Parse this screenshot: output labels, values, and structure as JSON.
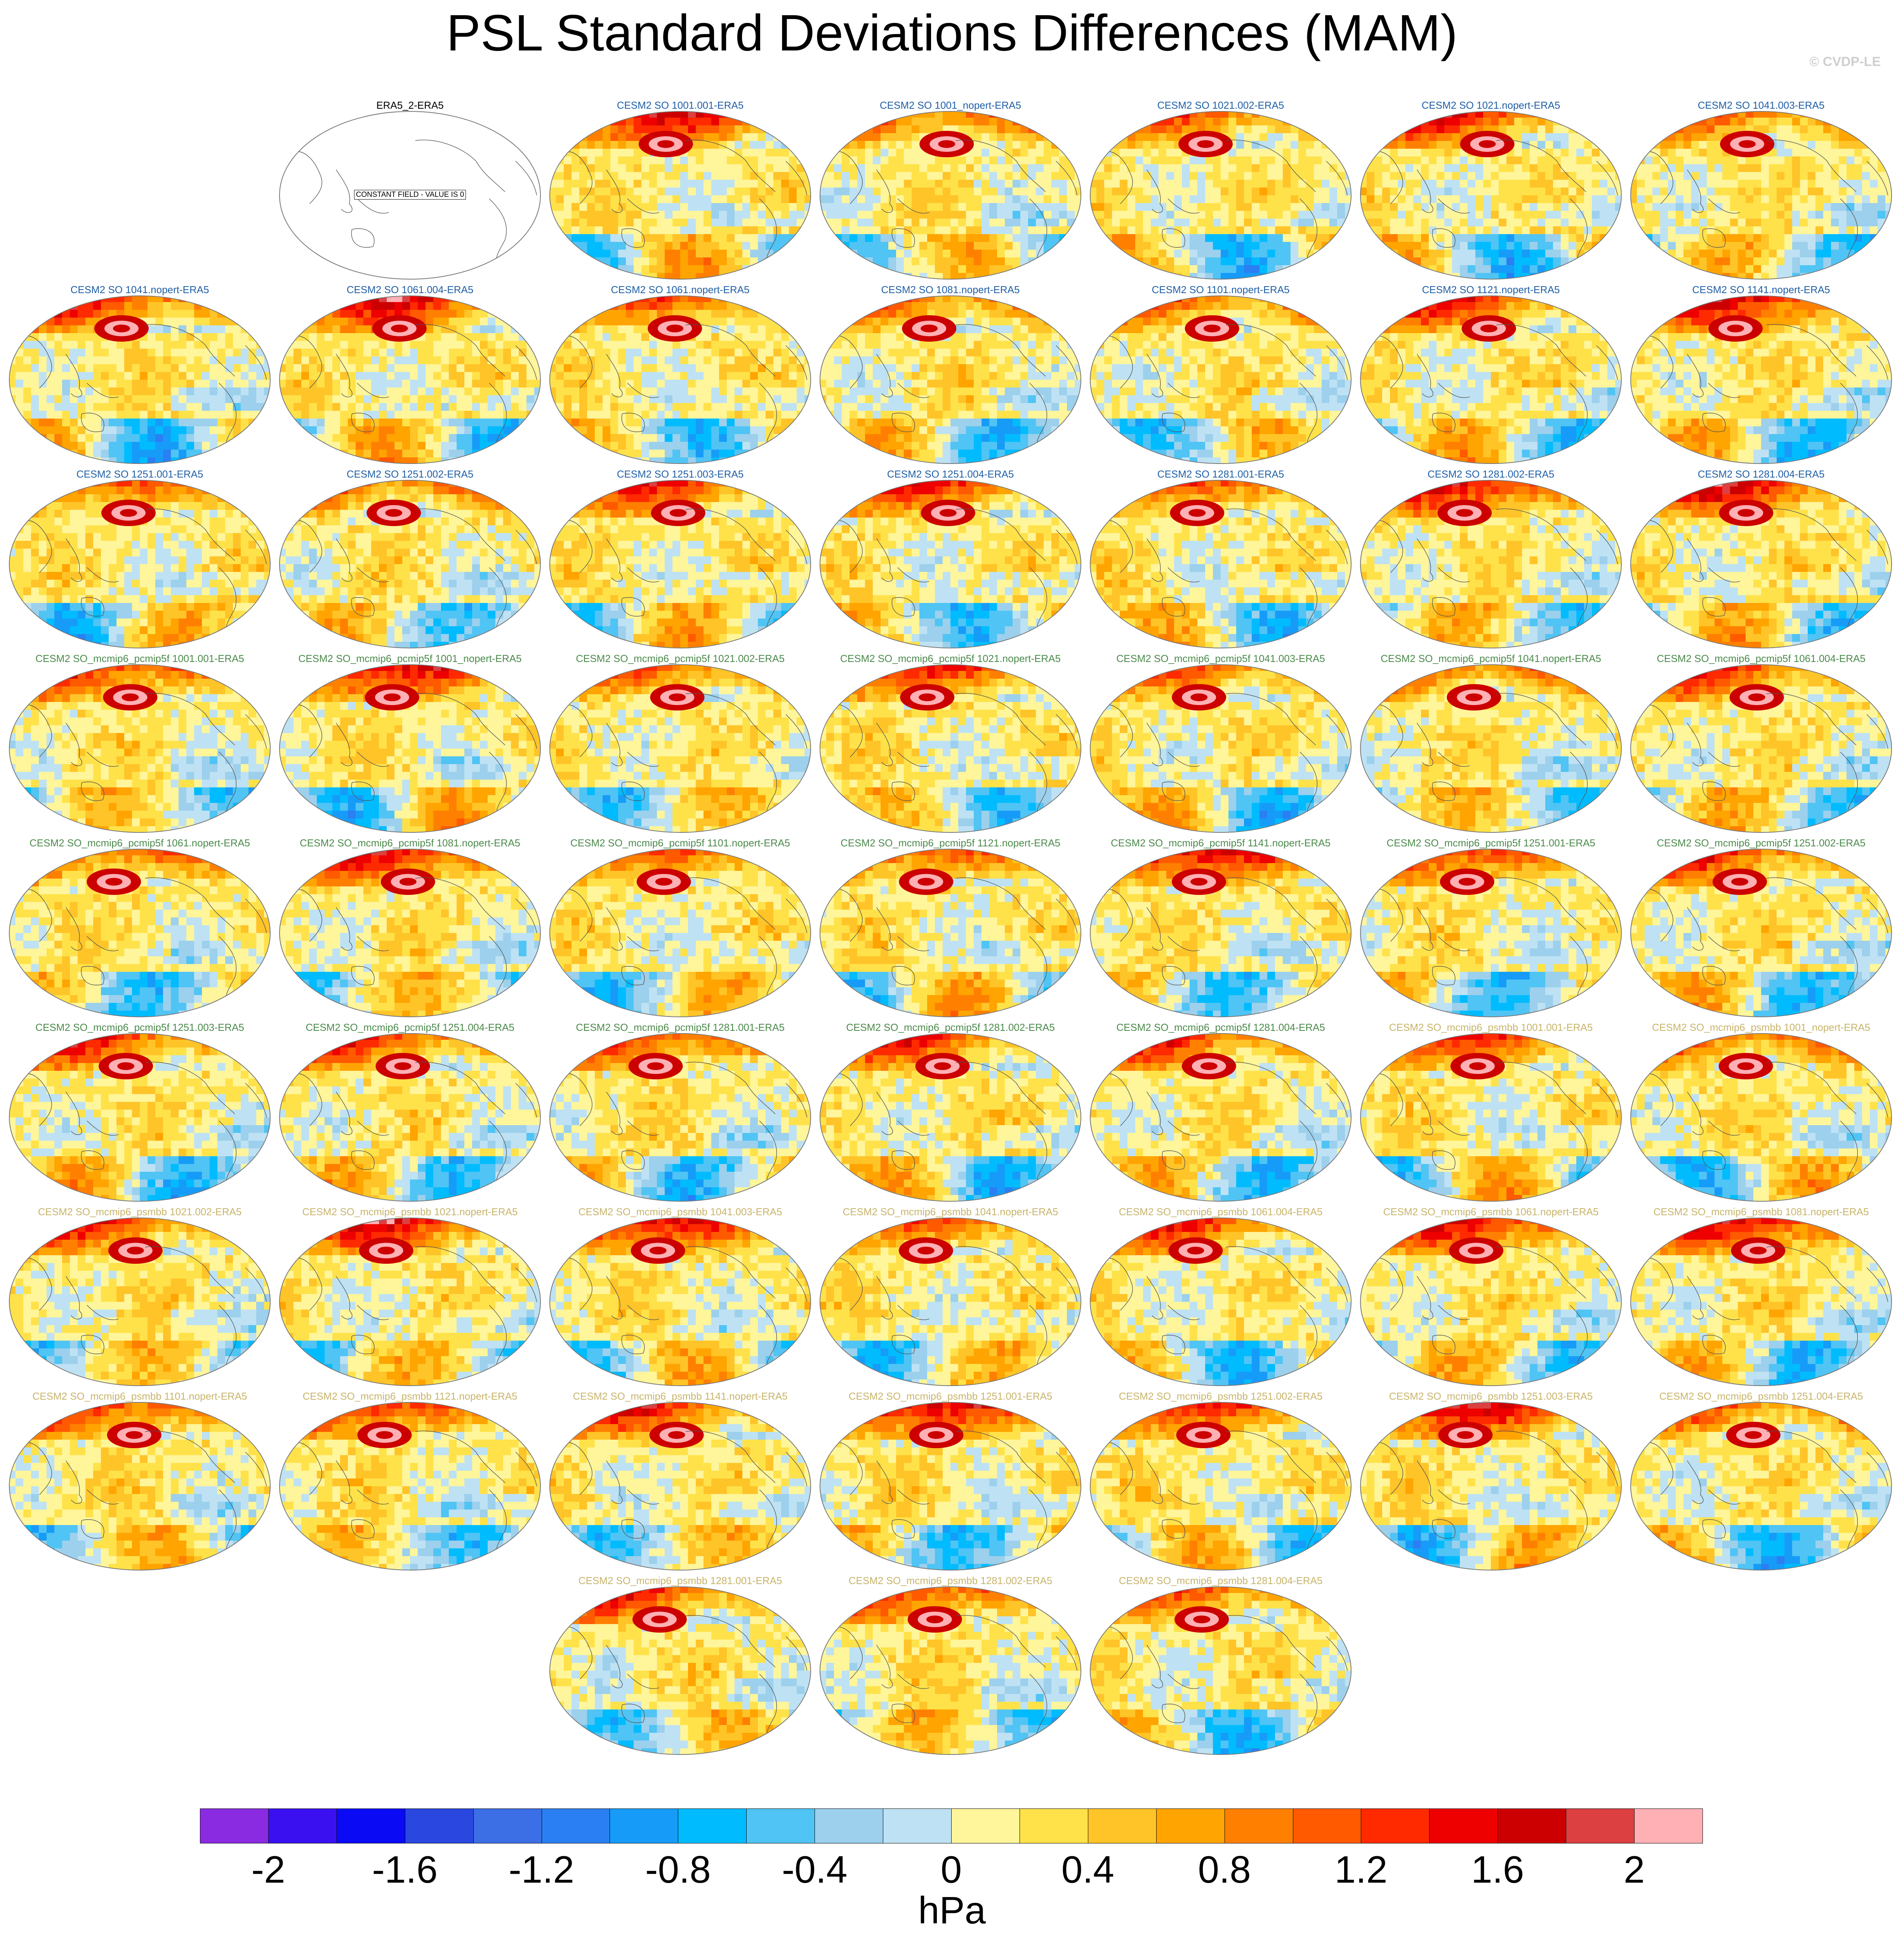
{
  "title": "PSL Standard Deviations Differences (MAM)",
  "watermark": "© CVDP-LE",
  "obs_panel_note": "CONSTANT FIELD - VALUE IS 0",
  "group_colors": {
    "CESM2 SO": "#1f5fa6",
    "CESM2 SO_mcmip6_pcmip5f": "#4b8a4b",
    "CESM2 SO_mcmip6_psmbb": "#c8b46a",
    "obs": "#000000"
  },
  "panels": [
    {
      "label": "ERA5_2-ERA5",
      "group": "obs",
      "row": 0,
      "col": 1
    },
    {
      "label": "CESM2 SO 1001.001-ERA5",
      "group": "CESM2 SO",
      "row": 0,
      "col": 2
    },
    {
      "label": "CESM2 SO 1001_nopert-ERA5",
      "group": "CESM2 SO",
      "row": 0,
      "col": 3
    },
    {
      "label": "CESM2 SO 1021.002-ERA5",
      "group": "CESM2 SO",
      "row": 0,
      "col": 4
    },
    {
      "label": "CESM2 SO 1021.nopert-ERA5",
      "group": "CESM2 SO",
      "row": 0,
      "col": 5
    },
    {
      "label": "CESM2 SO 1041.003-ERA5",
      "group": "CESM2 SO",
      "row": 0,
      "col": 6
    },
    {
      "label": "CESM2 SO 1041.nopert-ERA5",
      "group": "CESM2 SO",
      "row": 1,
      "col": 0
    },
    {
      "label": "CESM2 SO 1061.004-ERA5",
      "group": "CESM2 SO",
      "row": 1,
      "col": 1
    },
    {
      "label": "CESM2 SO 1061.nopert-ERA5",
      "group": "CESM2 SO",
      "row": 1,
      "col": 2
    },
    {
      "label": "CESM2 SO 1081.nopert-ERA5",
      "group": "CESM2 SO",
      "row": 1,
      "col": 3
    },
    {
      "label": "CESM2 SO 1101.nopert-ERA5",
      "group": "CESM2 SO",
      "row": 1,
      "col": 4
    },
    {
      "label": "CESM2 SO 1121.nopert-ERA5",
      "group": "CESM2 SO",
      "row": 1,
      "col": 5
    },
    {
      "label": "CESM2 SO 1141.nopert-ERA5",
      "group": "CESM2 SO",
      "row": 1,
      "col": 6
    },
    {
      "label": "CESM2 SO 1251.001-ERA5",
      "group": "CESM2 SO",
      "row": 2,
      "col": 0
    },
    {
      "label": "CESM2 SO 1251.002-ERA5",
      "group": "CESM2 SO",
      "row": 2,
      "col": 1
    },
    {
      "label": "CESM2 SO 1251.003-ERA5",
      "group": "CESM2 SO",
      "row": 2,
      "col": 2
    },
    {
      "label": "CESM2 SO 1251.004-ERA5",
      "group": "CESM2 SO",
      "row": 2,
      "col": 3
    },
    {
      "label": "CESM2 SO 1281.001-ERA5",
      "group": "CESM2 SO",
      "row": 2,
      "col": 4
    },
    {
      "label": "CESM2 SO 1281.002-ERA5",
      "group": "CESM2 SO",
      "row": 2,
      "col": 5
    },
    {
      "label": "CESM2 SO 1281.004-ERA5",
      "group": "CESM2 SO",
      "row": 2,
      "col": 6
    },
    {
      "label": "CESM2 SO_mcmip6_pcmip5f 1001.001-ERA5",
      "group": "CESM2 SO_mcmip6_pcmip5f",
      "row": 3,
      "col": 0
    },
    {
      "label": "CESM2 SO_mcmip6_pcmip5f 1001_nopert-ERA5",
      "group": "CESM2 SO_mcmip6_pcmip5f",
      "row": 3,
      "col": 1
    },
    {
      "label": "CESM2 SO_mcmip6_pcmip5f 1021.002-ERA5",
      "group": "CESM2 SO_mcmip6_pcmip5f",
      "row": 3,
      "col": 2
    },
    {
      "label": "CESM2 SO_mcmip6_pcmip5f 1021.nopert-ERA5",
      "group": "CESM2 SO_mcmip6_pcmip5f",
      "row": 3,
      "col": 3
    },
    {
      "label": "CESM2 SO_mcmip6_pcmip5f 1041.003-ERA5",
      "group": "CESM2 SO_mcmip6_pcmip5f",
      "row": 3,
      "col": 4
    },
    {
      "label": "CESM2 SO_mcmip6_pcmip5f 1041.nopert-ERA5",
      "group": "CESM2 SO_mcmip6_pcmip5f",
      "row": 3,
      "col": 5
    },
    {
      "label": "CESM2 SO_mcmip6_pcmip5f 1061.004-ERA5",
      "group": "CESM2 SO_mcmip6_pcmip5f",
      "row": 3,
      "col": 6
    },
    {
      "label": "CESM2 SO_mcmip6_pcmip5f 1061.nopert-ERA5",
      "group": "CESM2 SO_mcmip6_pcmip5f",
      "row": 4,
      "col": 0
    },
    {
      "label": "CESM2 SO_mcmip6_pcmip5f 1081.nopert-ERA5",
      "group": "CESM2 SO_mcmip6_pcmip5f",
      "row": 4,
      "col": 1
    },
    {
      "label": "CESM2 SO_mcmip6_pcmip5f 1101.nopert-ERA5",
      "group": "CESM2 SO_mcmip6_pcmip5f",
      "row": 4,
      "col": 2
    },
    {
      "label": "CESM2 SO_mcmip6_pcmip5f 1121.nopert-ERA5",
      "group": "CESM2 SO_mcmip6_pcmip5f",
      "row": 4,
      "col": 3
    },
    {
      "label": "CESM2 SO_mcmip6_pcmip5f 1141.nopert-ERA5",
      "group": "CESM2 SO_mcmip6_pcmip5f",
      "row": 4,
      "col": 4
    },
    {
      "label": "CESM2 SO_mcmip6_pcmip5f 1251.001-ERA5",
      "group": "CESM2 SO_mcmip6_pcmip5f",
      "row": 4,
      "col": 5
    },
    {
      "label": "CESM2 SO_mcmip6_pcmip5f 1251.002-ERA5",
      "group": "CESM2 SO_mcmip6_pcmip5f",
      "row": 4,
      "col": 6
    },
    {
      "label": "CESM2 SO_mcmip6_pcmip5f 1251.003-ERA5",
      "group": "CESM2 SO_mcmip6_pcmip5f",
      "row": 5,
      "col": 0
    },
    {
      "label": "CESM2 SO_mcmip6_pcmip5f 1251.004-ERA5",
      "group": "CESM2 SO_mcmip6_pcmip5f",
      "row": 5,
      "col": 1
    },
    {
      "label": "CESM2 SO_mcmip6_pcmip5f 1281.001-ERA5",
      "group": "CESM2 SO_mcmip6_pcmip5f",
      "row": 5,
      "col": 2
    },
    {
      "label": "CESM2 SO_mcmip6_pcmip5f 1281.002-ERA5",
      "group": "CESM2 SO_mcmip6_pcmip5f",
      "row": 5,
      "col": 3
    },
    {
      "label": "CESM2 SO_mcmip6_pcmip5f 1281.004-ERA5",
      "group": "CESM2 SO_mcmip6_pcmip5f",
      "row": 5,
      "col": 4
    },
    {
      "label": "CESM2 SO_mcmip6_psmbb 1001.001-ERA5",
      "group": "CESM2 SO_mcmip6_psmbb",
      "row": 5,
      "col": 5
    },
    {
      "label": "CESM2 SO_mcmip6_psmbb 1001_nopert-ERA5",
      "group": "CESM2 SO_mcmip6_psmbb",
      "row": 5,
      "col": 6
    },
    {
      "label": "CESM2 SO_mcmip6_psmbb 1021.002-ERA5",
      "group": "CESM2 SO_mcmip6_psmbb",
      "row": 6,
      "col": 0
    },
    {
      "label": "CESM2 SO_mcmip6_psmbb 1021.nopert-ERA5",
      "group": "CESM2 SO_mcmip6_psmbb",
      "row": 6,
      "col": 1
    },
    {
      "label": "CESM2 SO_mcmip6_psmbb 1041.003-ERA5",
      "group": "CESM2 SO_mcmip6_psmbb",
      "row": 6,
      "col": 2
    },
    {
      "label": "CESM2 SO_mcmip6_psmbb 1041.nopert-ERA5",
      "group": "CESM2 SO_mcmip6_psmbb",
      "row": 6,
      "col": 3
    },
    {
      "label": "CESM2 SO_mcmip6_psmbb 1061.004-ERA5",
      "group": "CESM2 SO_mcmip6_psmbb",
      "row": 6,
      "col": 4
    },
    {
      "label": "CESM2 SO_mcmip6_psmbb 1061.nopert-ERA5",
      "group": "CESM2 SO_mcmip6_psmbb",
      "row": 6,
      "col": 5
    },
    {
      "label": "CESM2 SO_mcmip6_psmbb 1081.nopert-ERA5",
      "group": "CESM2 SO_mcmip6_psmbb",
      "row": 6,
      "col": 6
    },
    {
      "label": "CESM2 SO_mcmip6_psmbb 1101.nopert-ERA5",
      "group": "CESM2 SO_mcmip6_psmbb",
      "row": 7,
      "col": 0
    },
    {
      "label": "CESM2 SO_mcmip6_psmbb 1121.nopert-ERA5",
      "group": "CESM2 SO_mcmip6_psmbb",
      "row": 7,
      "col": 1
    },
    {
      "label": "CESM2 SO_mcmip6_psmbb 1141.nopert-ERA5",
      "group": "CESM2 SO_mcmip6_psmbb",
      "row": 7,
      "col": 2
    },
    {
      "label": "CESM2 SO_mcmip6_psmbb 1251.001-ERA5",
      "group": "CESM2 SO_mcmip6_psmbb",
      "row": 7,
      "col": 3
    },
    {
      "label": "CESM2 SO_mcmip6_psmbb 1251.002-ERA5",
      "group": "CESM2 SO_mcmip6_psmbb",
      "row": 7,
      "col": 4
    },
    {
      "label": "CESM2 SO_mcmip6_psmbb 1251.003-ERA5",
      "group": "CESM2 SO_mcmip6_psmbb",
      "row": 7,
      "col": 5
    },
    {
      "label": "CESM2 SO_mcmip6_psmbb 1251.004-ERA5",
      "group": "CESM2 SO_mcmip6_psmbb",
      "row": 7,
      "col": 6
    },
    {
      "label": "CESM2 SO_mcmip6_psmbb 1281.001-ERA5",
      "group": "CESM2 SO_mcmip6_psmbb",
      "row": 8,
      "col": 2
    },
    {
      "label": "CESM2 SO_mcmip6_psmbb 1281.002-ERA5",
      "group": "CESM2 SO_mcmip6_psmbb",
      "row": 8,
      "col": 3
    },
    {
      "label": "CESM2 SO_mcmip6_psmbb 1281.004-ERA5",
      "group": "CESM2 SO_mcmip6_psmbb",
      "row": 8,
      "col": 4
    }
  ],
  "colorbar": {
    "units": "hPa",
    "levels": [
      -2.2,
      -2.0,
      -1.8,
      -1.6,
      -1.4,
      -1.2,
      -1.0,
      -0.8,
      -0.6,
      -0.4,
      -0.2,
      0,
      0.2,
      0.4,
      0.6,
      0.8,
      1.0,
      1.2,
      1.4,
      1.6,
      1.8,
      2.0,
      2.2
    ],
    "colors": [
      "#8a2be2",
      "#3b10f0",
      "#0a0af5",
      "#2a48e0",
      "#3c6ee6",
      "#2a7ff2",
      "#169cf8",
      "#00bcff",
      "#50c4f4",
      "#9cd0ec",
      "#bee2f4",
      "#fff59a",
      "#ffe24a",
      "#ffc428",
      "#ffa400",
      "#ff8000",
      "#ff5a00",
      "#ff2a00",
      "#ee0000",
      "#cc0000",
      "#dc4040",
      "#ffb0b4"
    ],
    "tick_labels": [
      "-2",
      "-1.6",
      "-1.2",
      "-0.8",
      "-0.4",
      "0",
      "0.4",
      "0.8",
      "1.2",
      "1.6",
      "2"
    ],
    "tick_values": [
      -2,
      -1.6,
      -1.2,
      -0.8,
      -0.4,
      0,
      0.4,
      0.8,
      1.2,
      1.6,
      2
    ]
  }
}
